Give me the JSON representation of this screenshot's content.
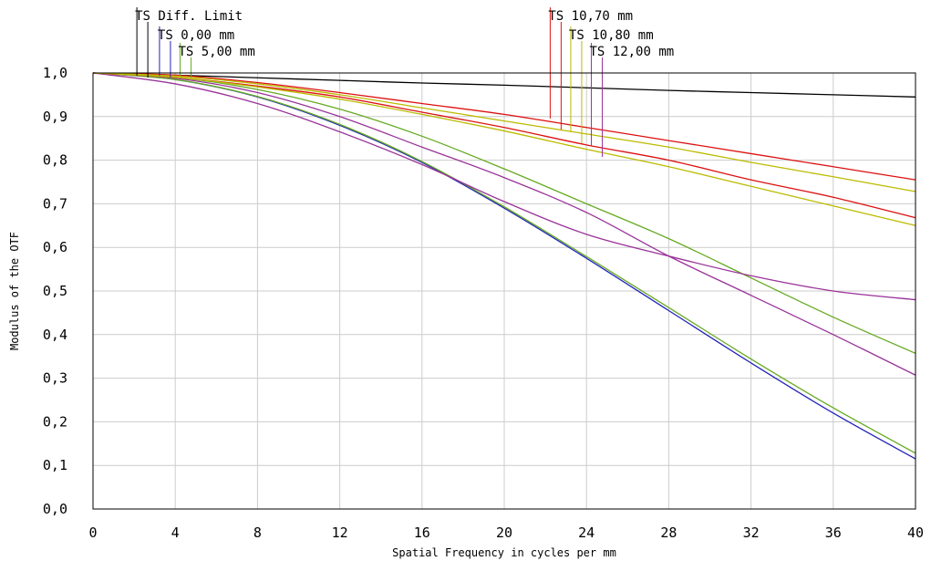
{
  "chart_data": {
    "type": "line",
    "title": "",
    "xlabel": "Spatial Frequency in cycles per mm",
    "ylabel": "Modulus of the OTF",
    "xlim": [
      0,
      40
    ],
    "ylim": [
      0,
      1
    ],
    "xticks": [
      "0",
      "4",
      "8",
      "12",
      "16",
      "20",
      "24",
      "28",
      "32",
      "36",
      "40"
    ],
    "yticks": [
      "0,0",
      "0,1",
      "0,2",
      "0,3",
      "0,4",
      "0,5",
      "0,6",
      "0,7",
      "0,8",
      "0,9",
      "1,0"
    ],
    "grid": true,
    "legend_position": "top",
    "legend": [
      {
        "label": "TS Diff. Limit",
        "color": "#000000",
        "x": 2.4
      },
      {
        "label": "TS 0,00 mm",
        "color": "#2222bb",
        "x": 3.5
      },
      {
        "label": "TS 5,00 mm",
        "color": "#66aa22",
        "x": 4.5
      },
      {
        "label": "TS 10,70 mm",
        "color": "#dd1111",
        "x": 22.5
      },
      {
        "label": "TS 10,80 mm",
        "color": "#bbbb00",
        "x": 23.5
      },
      {
        "label": "TS 12,00 mm",
        "color": "#993399",
        "x": 24.5
      }
    ],
    "series": [
      {
        "color": "#000000",
        "x": [
          0,
          4,
          8,
          12,
          16,
          20,
          24,
          28,
          32,
          36,
          40
        ],
        "y": [
          1.0,
          0.995,
          0.989,
          0.983,
          0.977,
          0.972,
          0.966,
          0.96,
          0.955,
          0.95,
          0.945
        ]
      },
      {
        "color": "#2222bb",
        "x": [
          0,
          4,
          8,
          12,
          16,
          20,
          24,
          28,
          32,
          36,
          40
        ],
        "y": [
          1.0,
          0.985,
          0.945,
          0.88,
          0.795,
          0.69,
          0.575,
          0.455,
          0.335,
          0.22,
          0.115
        ]
      },
      {
        "color": "#66aa22",
        "x": [
          0,
          4,
          8,
          12,
          16,
          20,
          24,
          28,
          32,
          36,
          40
        ],
        "y": [
          1.0,
          0.985,
          0.946,
          0.882,
          0.797,
          0.693,
          0.579,
          0.462,
          0.344,
          0.232,
          0.128
        ]
      },
      {
        "color": "#66aa22",
        "x": [
          0,
          4,
          8,
          12,
          16,
          20,
          24,
          28,
          32,
          36,
          40
        ],
        "y": [
          1.0,
          0.99,
          0.962,
          0.917,
          0.855,
          0.78,
          0.7,
          0.62,
          0.53,
          0.44,
          0.357
        ]
      },
      {
        "color": "#993399",
        "x": [
          0,
          4,
          8,
          12,
          16,
          20,
          24,
          28,
          32,
          36,
          40
        ],
        "y": [
          1.0,
          0.988,
          0.955,
          0.9,
          0.83,
          0.76,
          0.68,
          0.58,
          0.49,
          0.4,
          0.307
        ]
      },
      {
        "color": "#993399",
        "x": [
          0,
          4,
          8,
          12,
          16,
          20,
          24,
          28,
          32,
          36,
          40
        ],
        "y": [
          1.0,
          0.975,
          0.93,
          0.865,
          0.79,
          0.705,
          0.63,
          0.58,
          0.535,
          0.5,
          0.48
        ]
      },
      {
        "color": "#dd1111",
        "x": [
          0,
          4,
          8,
          12,
          16,
          20,
          24,
          28,
          32,
          36,
          40
        ],
        "y": [
          1.0,
          0.995,
          0.978,
          0.955,
          0.93,
          0.905,
          0.875,
          0.845,
          0.815,
          0.785,
          0.755
        ]
      },
      {
        "color": "#dd1111",
        "x": [
          0,
          4,
          8,
          12,
          16,
          20,
          24,
          28,
          32,
          36,
          40
        ],
        "y": [
          1.0,
          0.99,
          0.97,
          0.945,
          0.91,
          0.875,
          0.835,
          0.8,
          0.755,
          0.715,
          0.668
        ]
      },
      {
        "color": "#bbbb00",
        "x": [
          0,
          4,
          8,
          12,
          16,
          20,
          24,
          28,
          32,
          36,
          40
        ],
        "y": [
          1.0,
          0.993,
          0.975,
          0.95,
          0.92,
          0.89,
          0.86,
          0.83,
          0.795,
          0.762,
          0.728
        ]
      },
      {
        "color": "#bbbb00",
        "x": [
          0,
          4,
          8,
          12,
          16,
          20,
          24,
          28,
          32,
          36,
          40
        ],
        "y": [
          1.0,
          0.99,
          0.968,
          0.94,
          0.905,
          0.867,
          0.825,
          0.785,
          0.74,
          0.695,
          0.65
        ]
      }
    ]
  }
}
